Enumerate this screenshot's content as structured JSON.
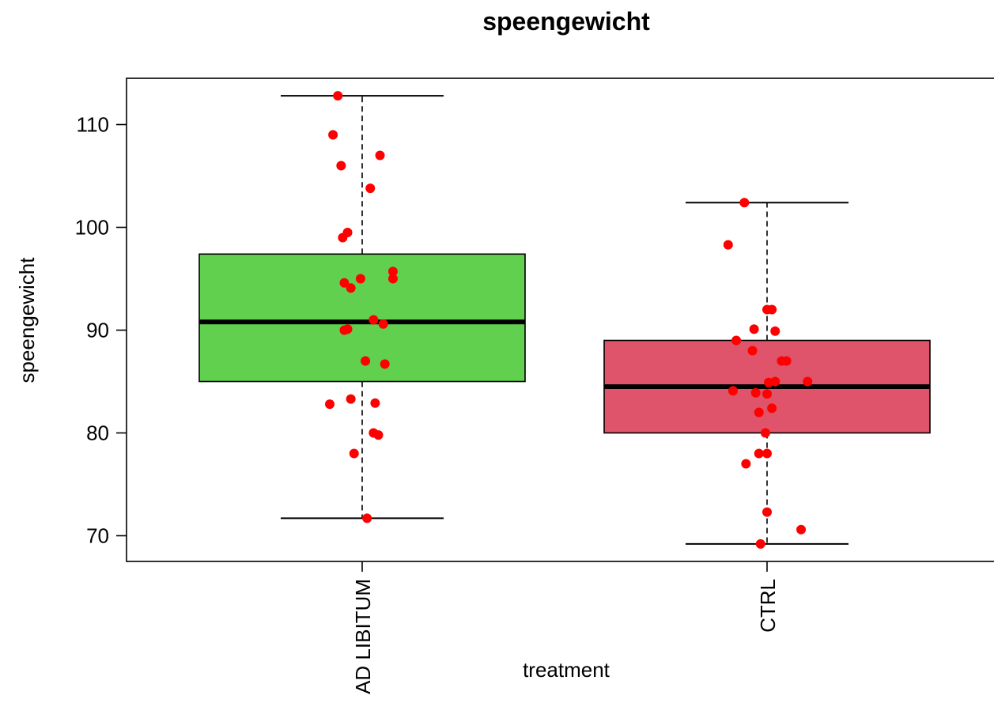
{
  "chart_data": {
    "type": "boxplot",
    "title": "speengewicht",
    "xlabel": "treatment",
    "ylabel": "speengewicht",
    "ylim": [
      67.5,
      114.5
    ],
    "yticks": [
      70,
      80,
      90,
      100,
      110
    ],
    "categories": [
      "AD LIBITUM",
      "CTRL"
    ],
    "boxes": [
      {
        "name": "AD LIBITUM",
        "color": "#61d04f",
        "whisker_low": 71.7,
        "q1": 85.0,
        "median": 90.8,
        "q3": 97.4,
        "whisker_high": 112.8
      },
      {
        "name": "CTRL",
        "color": "#df536b",
        "whisker_low": 69.2,
        "q1": 80.0,
        "median": 84.5,
        "q3": 89.0,
        "whisker_high": 102.4
      }
    ],
    "point_color": "#ff0000",
    "points": [
      [
        {
          "j": -0.15,
          "y": 112.8
        },
        {
          "j": -0.18,
          "y": 109.0
        },
        {
          "j": 0.11,
          "y": 107.0
        },
        {
          "j": -0.13,
          "y": 106.0
        },
        {
          "j": 0.05,
          "y": 103.8
        },
        {
          "j": -0.09,
          "y": 99.5
        },
        {
          "j": -0.12,
          "y": 99.0
        },
        {
          "j": 0.19,
          "y": 95.7
        },
        {
          "j": 0.19,
          "y": 95.0
        },
        {
          "j": -0.01,
          "y": 95.0
        },
        {
          "j": -0.11,
          "y": 94.6
        },
        {
          "j": -0.07,
          "y": 94.1
        },
        {
          "j": 0.07,
          "y": 91.0
        },
        {
          "j": 0.13,
          "y": 90.6
        },
        {
          "j": -0.09,
          "y": 90.1
        },
        {
          "j": -0.11,
          "y": 90.0
        },
        {
          "j": 0.02,
          "y": 87.0
        },
        {
          "j": 0.14,
          "y": 86.7
        },
        {
          "j": -0.07,
          "y": 83.3
        },
        {
          "j": 0.08,
          "y": 82.9
        },
        {
          "j": -0.2,
          "y": 82.8
        },
        {
          "j": 0.07,
          "y": 80.0
        },
        {
          "j": 0.1,
          "y": 79.8
        },
        {
          "j": -0.05,
          "y": 78.0
        },
        {
          "j": 0.03,
          "y": 71.7
        }
      ],
      [
        {
          "j": -0.14,
          "y": 102.4
        },
        {
          "j": -0.24,
          "y": 98.3
        },
        {
          "j": 0.0,
          "y": 92.0
        },
        {
          "j": 0.03,
          "y": 92.0
        },
        {
          "j": -0.08,
          "y": 90.1
        },
        {
          "j": 0.05,
          "y": 89.9
        },
        {
          "j": -0.19,
          "y": 89.0
        },
        {
          "j": -0.09,
          "y": 88.0
        },
        {
          "j": 0.09,
          "y": 87.0
        },
        {
          "j": 0.12,
          "y": 87.0
        },
        {
          "j": 0.25,
          "y": 85.0
        },
        {
          "j": 0.05,
          "y": 85.0
        },
        {
          "j": 0.01,
          "y": 84.9
        },
        {
          "j": -0.21,
          "y": 84.1
        },
        {
          "j": -0.07,
          "y": 83.9
        },
        {
          "j": 0.0,
          "y": 83.8
        },
        {
          "j": 0.03,
          "y": 82.4
        },
        {
          "j": -0.05,
          "y": 82.0
        },
        {
          "j": -0.01,
          "y": 80.0
        },
        {
          "j": 0.0,
          "y": 78.0
        },
        {
          "j": -0.05,
          "y": 78.0
        },
        {
          "j": -0.13,
          "y": 77.0
        },
        {
          "j": 0.0,
          "y": 72.3
        },
        {
          "j": 0.21,
          "y": 70.6
        },
        {
          "j": -0.04,
          "y": 69.2
        }
      ]
    ]
  }
}
